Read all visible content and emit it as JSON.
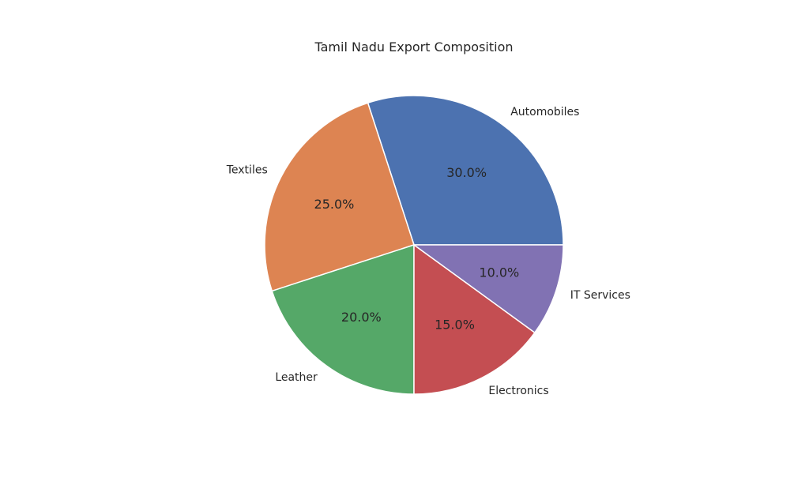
{
  "chart_data": {
    "type": "pie",
    "title": "Tamil Nadu Export Composition",
    "start_angle_deg": 0,
    "direction": "counterclockwise",
    "slices": [
      {
        "label": "Automobiles",
        "value": 30,
        "pct_label": "30.0%",
        "color": "#4c72b0"
      },
      {
        "label": "Textiles",
        "value": 25,
        "pct_label": "25.0%",
        "color": "#dd8452"
      },
      {
        "label": "Leather",
        "value": 20,
        "pct_label": "20.0%",
        "color": "#55a868"
      },
      {
        "label": "Electronics",
        "value": 15,
        "pct_label": "15.0%",
        "color": "#c44e52"
      },
      {
        "label": "IT Services",
        "value": 10,
        "pct_label": "10.0%",
        "color": "#8172b3"
      }
    ],
    "edge_color": "#ffffff"
  }
}
